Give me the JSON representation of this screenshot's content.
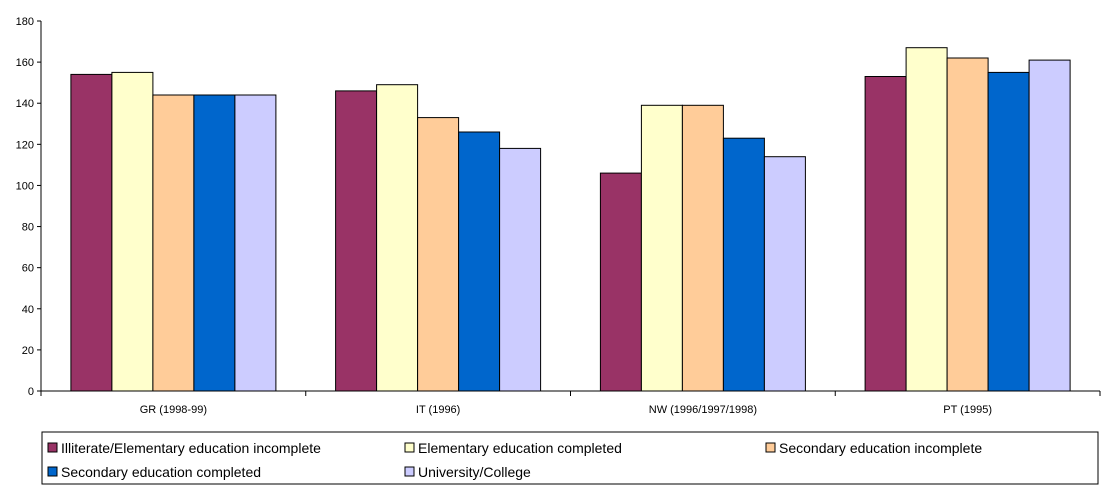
{
  "chart_data": {
    "type": "bar",
    "categories": [
      "GR (1998-99)",
      "IT (1996)",
      "NW (1996/1997/1998)",
      "PT (1995)"
    ],
    "series": [
      {
        "name": "Illiterate/Elementary education incomplete",
        "values": [
          154,
          146,
          106,
          153
        ],
        "color": "#993366"
      },
      {
        "name": "Elementary education completed",
        "values": [
          155,
          149,
          139,
          167
        ],
        "color": "#FFFFCC"
      },
      {
        "name": "Secondary education incomplete",
        "values": [
          144,
          133,
          139,
          162
        ],
        "color": "#FFCC99"
      },
      {
        "name": "Secondary education completed",
        "values": [
          144,
          126,
          123,
          155
        ],
        "color": "#0066CC"
      },
      {
        "name": "University/College",
        "values": [
          144,
          118,
          114,
          161
        ],
        "color": "#CCCCFF"
      }
    ],
    "yticks": [
      "0",
      "20",
      "40",
      "60",
      "80",
      "100",
      "120",
      "140",
      "160",
      "180"
    ],
    "ylim": [
      0,
      180
    ],
    "grid": false,
    "legend_position": "bottom",
    "title": "",
    "xlabel": "",
    "ylabel": ""
  }
}
